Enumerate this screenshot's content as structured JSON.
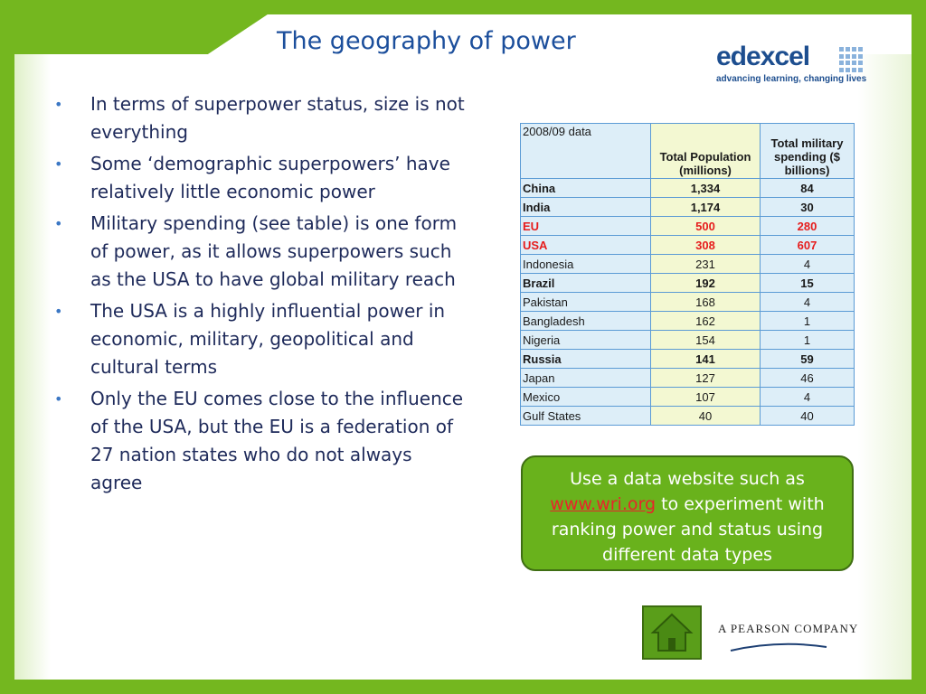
{
  "slide": {
    "title": "The geography of power"
  },
  "logo": {
    "word": "edexcel",
    "tagline": "advancing learning, changing lives"
  },
  "bullets": [
    "In terms of superpower status, size is not everything",
    "Some ‘demographic superpowers’ have relatively little economic power",
    "Military spending (see table) is one form of power, as it allows superpowers such as the USA to have global military reach",
    "The USA is a highly influential power in economic, military, geopolitical and cultural terms",
    "Only the EU comes close to the influence of the USA, but the EU is a federation of 27 nation states who do not always agree"
  ],
  "bullet_marker": "•",
  "table": {
    "headers": [
      "2008/09 data",
      "Total Population (millions)",
      "Total military spending ($ billions)"
    ],
    "rows": [
      {
        "country": "China",
        "population": "1,334",
        "military": "84",
        "style": "bold"
      },
      {
        "country": "India",
        "population": "1,174",
        "military": "30",
        "style": "bold"
      },
      {
        "country": "EU",
        "population": "500",
        "military": "280",
        "style": "red"
      },
      {
        "country": "USA",
        "population": "308",
        "military": "607",
        "style": "red"
      },
      {
        "country": "Indonesia",
        "population": "231",
        "military": "4",
        "style": "normal"
      },
      {
        "country": "Brazil",
        "population": "192",
        "military": "15",
        "style": "bold"
      },
      {
        "country": "Pakistan",
        "population": "168",
        "military": "4",
        "style": "normal"
      },
      {
        "country": "Bangladesh",
        "population": "162",
        "military": "1",
        "style": "normal"
      },
      {
        "country": "Nigeria",
        "population": "154",
        "military": "1",
        "style": "normal"
      },
      {
        "country": "Russia",
        "population": "141",
        "military": "59",
        "style": "bold"
      },
      {
        "country": "Japan",
        "population": "127",
        "military": "46",
        "style": "normal"
      },
      {
        "country": "Mexico",
        "population": "107",
        "military": "4",
        "style": "normal"
      },
      {
        "country": "Gulf States",
        "population": "40",
        "military": "40",
        "style": "normal"
      }
    ]
  },
  "callout": {
    "before_link": "Use a data website such as ",
    "link": "www.wri.org",
    "after_link": " to experiment with ranking power and status using different data types"
  },
  "footer": {
    "company": "A PEARSON COMPANY",
    "home_icon": "home-icon"
  },
  "colors": {
    "brand_green": "#74b71f",
    "title_blue": "#1c4f9c",
    "highlight_red": "#e61c1c"
  }
}
